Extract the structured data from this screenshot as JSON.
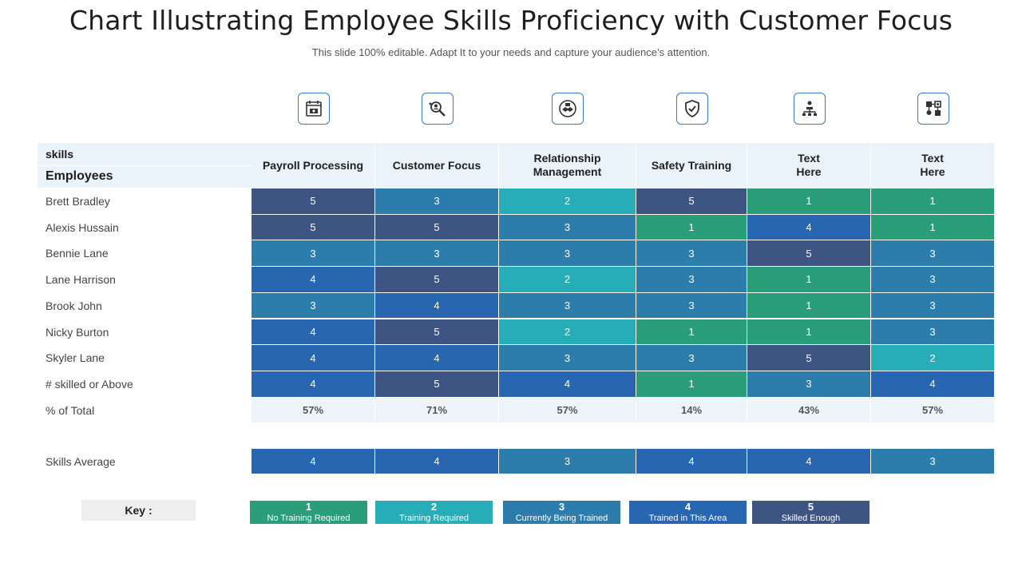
{
  "title": "Chart Illustrating Employee Skills Proficiency with Customer Focus",
  "subtitle": "This slide 100% editable. Adapt  It to your needs and capture your audience’s attention.",
  "colors": {
    "1": "#2a9e78",
    "2": "#27adb8",
    "3": "#2c7dac",
    "4": "#2866b2",
    "5": "#3e5584"
  },
  "icons": [
    "calendar-money-icon",
    "search-people-icon",
    "handshake-icon",
    "shield-check-icon",
    "org-chart-icon",
    "workflow-icon"
  ],
  "chart_data": {
    "type": "table",
    "row_header_top": "skills",
    "row_header_bottom": "Employees",
    "columns": [
      "Payroll Processing",
      "Customer Focus",
      "Relationship\nManagement",
      "Safety Training",
      "Text\nHere",
      "Text\nHere"
    ],
    "rows": [
      {
        "name": "Brett Bradley",
        "values": [
          5,
          3,
          2,
          5,
          1,
          1
        ]
      },
      {
        "name": "Alexis Hussain",
        "values": [
          5,
          5,
          3,
          1,
          4,
          1
        ]
      },
      {
        "name": "Bennie Lane",
        "values": [
          3,
          3,
          3,
          3,
          5,
          3
        ]
      },
      {
        "name": "Lane Harrison",
        "values": [
          4,
          5,
          2,
          3,
          1,
          3
        ]
      },
      {
        "name": "Brook John",
        "values": [
          3,
          4,
          3,
          3,
          1,
          3
        ]
      },
      {
        "name": "Nicky Burton",
        "values": [
          4,
          5,
          2,
          1,
          1,
          3
        ]
      },
      {
        "name": "Skyler Lane",
        "values": [
          4,
          4,
          3,
          3,
          5,
          2
        ]
      }
    ],
    "skilled_label": "# skilled or Above",
    "skilled_values": [
      4,
      5,
      4,
      1,
      3,
      4
    ],
    "pct_label": "% of Total",
    "pct_values": [
      "57%",
      "71%",
      "57%",
      "14%",
      "43%",
      "57%"
    ],
    "average_label": "Skills Average",
    "average_values": [
      4,
      4,
      3,
      4,
      4,
      3
    ]
  },
  "key": {
    "label": "Key :",
    "items": [
      {
        "num": "1",
        "desc": "No Training Required"
      },
      {
        "num": "2",
        "desc": "Training Required"
      },
      {
        "num": "3",
        "desc": "Currently Being Trained"
      },
      {
        "num": "4",
        "desc": "Trained in This Area"
      },
      {
        "num": "5",
        "desc": "Skilled Enough"
      }
    ]
  }
}
